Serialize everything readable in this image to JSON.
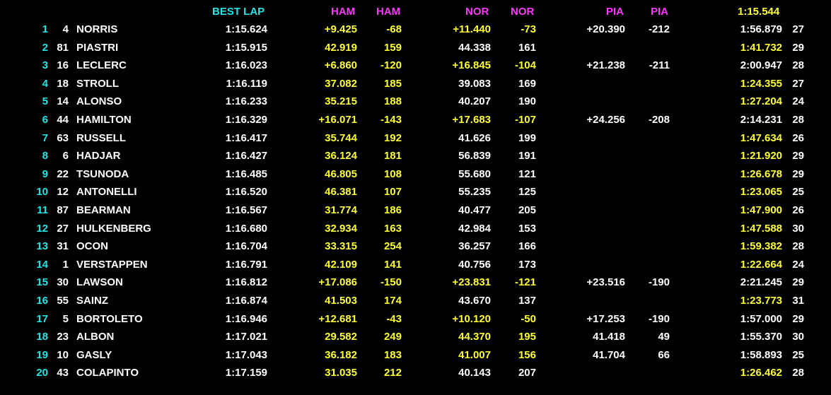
{
  "header": {
    "best_lap": "BEST LAP",
    "ham1": "HAM",
    "ham2": "HAM",
    "nor1": "NOR",
    "nor2": "NOR",
    "pia1": "PIA",
    "pia2": "PIA",
    "ref_lap": "1:15.544"
  },
  "colors": {
    "position": "#22e6e6",
    "header_best": "#22e6e6",
    "header_driver": "#ff33ff",
    "highlight": "#ffff33",
    "normal": "#ffffff"
  },
  "rows": [
    {
      "pos": "1",
      "num": "4",
      "name": "NORRIS",
      "best": "1:15.624",
      "ham_gap": "+9.425",
      "ham_gap_hl": true,
      "ham_diff": "-68",
      "ham_diff_hl": true,
      "nor_gap": "+11.440",
      "nor_gap_hl": true,
      "nor_diff": "-73",
      "nor_diff_hl": true,
      "pia_gap": "+20.390",
      "pia_gap_hl": false,
      "pia_diff": "-212",
      "pia_diff_hl": false,
      "lap": "1:56.879",
      "lap_hl": false,
      "laps": "27"
    },
    {
      "pos": "2",
      "num": "81",
      "name": "PIASTRI",
      "best": "1:15.915",
      "ham_gap": "42.919",
      "ham_gap_hl": true,
      "ham_diff": "159",
      "ham_diff_hl": true,
      "nor_gap": "44.338",
      "nor_gap_hl": false,
      "nor_diff": "161",
      "nor_diff_hl": false,
      "pia_gap": "",
      "pia_gap_hl": false,
      "pia_diff": "",
      "pia_diff_hl": false,
      "lap": "1:41.732",
      "lap_hl": true,
      "laps": "29"
    },
    {
      "pos": "3",
      "num": "16",
      "name": "LECLERC",
      "best": "1:16.023",
      "ham_gap": "+6.860",
      "ham_gap_hl": true,
      "ham_diff": "-120",
      "ham_diff_hl": true,
      "nor_gap": "+16.845",
      "nor_gap_hl": true,
      "nor_diff": "-104",
      "nor_diff_hl": true,
      "pia_gap": "+21.238",
      "pia_gap_hl": false,
      "pia_diff": "-211",
      "pia_diff_hl": false,
      "lap": "2:00.947",
      "lap_hl": false,
      "laps": "28"
    },
    {
      "pos": "4",
      "num": "18",
      "name": "STROLL",
      "best": "1:16.119",
      "ham_gap": "37.082",
      "ham_gap_hl": true,
      "ham_diff": "185",
      "ham_diff_hl": true,
      "nor_gap": "39.083",
      "nor_gap_hl": false,
      "nor_diff": "169",
      "nor_diff_hl": false,
      "pia_gap": "",
      "pia_gap_hl": false,
      "pia_diff": "",
      "pia_diff_hl": false,
      "lap": "1:24.355",
      "lap_hl": true,
      "laps": "27"
    },
    {
      "pos": "5",
      "num": "14",
      "name": "ALONSO",
      "best": "1:16.233",
      "ham_gap": "35.215",
      "ham_gap_hl": true,
      "ham_diff": "188",
      "ham_diff_hl": true,
      "nor_gap": "40.207",
      "nor_gap_hl": false,
      "nor_diff": "190",
      "nor_diff_hl": false,
      "pia_gap": "",
      "pia_gap_hl": false,
      "pia_diff": "",
      "pia_diff_hl": false,
      "lap": "1:27.204",
      "lap_hl": true,
      "laps": "24"
    },
    {
      "pos": "6",
      "num": "44",
      "name": "HAMILTON",
      "best": "1:16.329",
      "ham_gap": "+16.071",
      "ham_gap_hl": true,
      "ham_diff": "-143",
      "ham_diff_hl": true,
      "nor_gap": "+17.683",
      "nor_gap_hl": true,
      "nor_diff": "-107",
      "nor_diff_hl": true,
      "pia_gap": "+24.256",
      "pia_gap_hl": false,
      "pia_diff": "-208",
      "pia_diff_hl": false,
      "lap": "2:14.231",
      "lap_hl": false,
      "laps": "28"
    },
    {
      "pos": "7",
      "num": "63",
      "name": "RUSSELL",
      "best": "1:16.417",
      "ham_gap": "35.744",
      "ham_gap_hl": true,
      "ham_diff": "192",
      "ham_diff_hl": true,
      "nor_gap": "41.626",
      "nor_gap_hl": false,
      "nor_diff": "199",
      "nor_diff_hl": false,
      "pia_gap": "",
      "pia_gap_hl": false,
      "pia_diff": "",
      "pia_diff_hl": false,
      "lap": "1:47.634",
      "lap_hl": true,
      "laps": "26"
    },
    {
      "pos": "8",
      "num": "6",
      "name": "HADJAR",
      "best": "1:16.427",
      "ham_gap": "36.124",
      "ham_gap_hl": true,
      "ham_diff": "181",
      "ham_diff_hl": true,
      "nor_gap": "56.839",
      "nor_gap_hl": false,
      "nor_diff": "191",
      "nor_diff_hl": false,
      "pia_gap": "",
      "pia_gap_hl": false,
      "pia_diff": "",
      "pia_diff_hl": false,
      "lap": "1:21.920",
      "lap_hl": true,
      "laps": "29"
    },
    {
      "pos": "9",
      "num": "22",
      "name": "TSUNODA",
      "best": "1:16.485",
      "ham_gap": "46.805",
      "ham_gap_hl": true,
      "ham_diff": "108",
      "ham_diff_hl": true,
      "nor_gap": "55.680",
      "nor_gap_hl": false,
      "nor_diff": "121",
      "nor_diff_hl": false,
      "pia_gap": "",
      "pia_gap_hl": false,
      "pia_diff": "",
      "pia_diff_hl": false,
      "lap": "1:26.678",
      "lap_hl": true,
      "laps": "29"
    },
    {
      "pos": "10",
      "num": "12",
      "name": "ANTONELLI",
      "best": "1:16.520",
      "ham_gap": "46.381",
      "ham_gap_hl": true,
      "ham_diff": "107",
      "ham_diff_hl": true,
      "nor_gap": "55.235",
      "nor_gap_hl": false,
      "nor_diff": "125",
      "nor_diff_hl": false,
      "pia_gap": "",
      "pia_gap_hl": false,
      "pia_diff": "",
      "pia_diff_hl": false,
      "lap": "1:23.065",
      "lap_hl": true,
      "laps": "25"
    },
    {
      "pos": "11",
      "num": "87",
      "name": "BEARMAN",
      "best": "1:16.567",
      "ham_gap": "31.774",
      "ham_gap_hl": true,
      "ham_diff": "186",
      "ham_diff_hl": true,
      "nor_gap": "40.477",
      "nor_gap_hl": false,
      "nor_diff": "205",
      "nor_diff_hl": false,
      "pia_gap": "",
      "pia_gap_hl": false,
      "pia_diff": "",
      "pia_diff_hl": false,
      "lap": "1:47.900",
      "lap_hl": true,
      "laps": "26"
    },
    {
      "pos": "12",
      "num": "27",
      "name": "HULKENBERG",
      "best": "1:16.680",
      "ham_gap": "32.934",
      "ham_gap_hl": true,
      "ham_diff": "163",
      "ham_diff_hl": true,
      "nor_gap": "42.984",
      "nor_gap_hl": false,
      "nor_diff": "153",
      "nor_diff_hl": false,
      "pia_gap": "",
      "pia_gap_hl": false,
      "pia_diff": "",
      "pia_diff_hl": false,
      "lap": "1:47.588",
      "lap_hl": true,
      "laps": "30"
    },
    {
      "pos": "13",
      "num": "31",
      "name": "OCON",
      "best": "1:16.704",
      "ham_gap": "33.315",
      "ham_gap_hl": true,
      "ham_diff": "254",
      "ham_diff_hl": true,
      "nor_gap": "36.257",
      "nor_gap_hl": false,
      "nor_diff": "166",
      "nor_diff_hl": false,
      "pia_gap": "",
      "pia_gap_hl": false,
      "pia_diff": "",
      "pia_diff_hl": false,
      "lap": "1:59.382",
      "lap_hl": true,
      "laps": "28"
    },
    {
      "pos": "14",
      "num": "1",
      "name": "VERSTAPPEN",
      "best": "1:16.791",
      "ham_gap": "42.109",
      "ham_gap_hl": true,
      "ham_diff": "141",
      "ham_diff_hl": true,
      "nor_gap": "40.756",
      "nor_gap_hl": false,
      "nor_diff": "173",
      "nor_diff_hl": false,
      "pia_gap": "",
      "pia_gap_hl": false,
      "pia_diff": "",
      "pia_diff_hl": false,
      "lap": "1:22.664",
      "lap_hl": true,
      "laps": "24"
    },
    {
      "pos": "15",
      "num": "30",
      "name": "LAWSON",
      "best": "1:16.812",
      "ham_gap": "+17.086",
      "ham_gap_hl": true,
      "ham_diff": "-150",
      "ham_diff_hl": true,
      "nor_gap": "+23.831",
      "nor_gap_hl": true,
      "nor_diff": "-121",
      "nor_diff_hl": true,
      "pia_gap": "+23.516",
      "pia_gap_hl": false,
      "pia_diff": "-190",
      "pia_diff_hl": false,
      "lap": "2:21.245",
      "lap_hl": false,
      "laps": "29"
    },
    {
      "pos": "16",
      "num": "55",
      "name": "SAINZ",
      "best": "1:16.874",
      "ham_gap": "41.503",
      "ham_gap_hl": true,
      "ham_diff": "174",
      "ham_diff_hl": true,
      "nor_gap": "43.670",
      "nor_gap_hl": false,
      "nor_diff": "137",
      "nor_diff_hl": false,
      "pia_gap": "",
      "pia_gap_hl": false,
      "pia_diff": "",
      "pia_diff_hl": false,
      "lap": "1:23.773",
      "lap_hl": true,
      "laps": "31"
    },
    {
      "pos": "17",
      "num": "5",
      "name": "BORTOLETO",
      "best": "1:16.946",
      "ham_gap": "+12.681",
      "ham_gap_hl": true,
      "ham_diff": "-43",
      "ham_diff_hl": true,
      "nor_gap": "+10.120",
      "nor_gap_hl": true,
      "nor_diff": "-50",
      "nor_diff_hl": true,
      "pia_gap": "+17.253",
      "pia_gap_hl": false,
      "pia_diff": "-190",
      "pia_diff_hl": false,
      "lap": "1:57.000",
      "lap_hl": false,
      "laps": "29"
    },
    {
      "pos": "18",
      "num": "23",
      "name": "ALBON",
      "best": "1:17.021",
      "ham_gap": "29.582",
      "ham_gap_hl": true,
      "ham_diff": "249",
      "ham_diff_hl": true,
      "nor_gap": "44.370",
      "nor_gap_hl": true,
      "nor_diff": "195",
      "nor_diff_hl": true,
      "pia_gap": "41.418",
      "pia_gap_hl": false,
      "pia_diff": "49",
      "pia_diff_hl": false,
      "lap": "1:55.370",
      "lap_hl": false,
      "laps": "30"
    },
    {
      "pos": "19",
      "num": "10",
      "name": "GASLY",
      "best": "1:17.043",
      "ham_gap": "36.182",
      "ham_gap_hl": true,
      "ham_diff": "183",
      "ham_diff_hl": true,
      "nor_gap": "41.007",
      "nor_gap_hl": true,
      "nor_diff": "156",
      "nor_diff_hl": true,
      "pia_gap": "41.704",
      "pia_gap_hl": false,
      "pia_diff": "66",
      "pia_diff_hl": false,
      "lap": "1:58.893",
      "lap_hl": false,
      "laps": "25"
    },
    {
      "pos": "20",
      "num": "43",
      "name": "COLAPINTO",
      "best": "1:17.159",
      "ham_gap": "31.035",
      "ham_gap_hl": true,
      "ham_diff": "212",
      "ham_diff_hl": true,
      "nor_gap": "40.143",
      "nor_gap_hl": false,
      "nor_diff": "207",
      "nor_diff_hl": false,
      "pia_gap": "",
      "pia_gap_hl": false,
      "pia_diff": "",
      "pia_diff_hl": false,
      "lap": "1:26.462",
      "lap_hl": true,
      "laps": "28"
    }
  ]
}
